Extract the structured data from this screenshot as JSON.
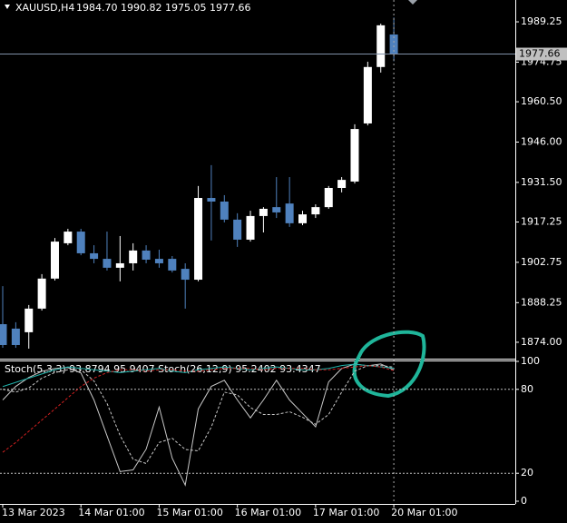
{
  "chart_data": [
    {
      "type": "candlestick",
      "symbol": "XAUUSD,H4",
      "ohlc_text": "1984.70 1990.82 1975.05 1977.66",
      "categories": [
        "13 Mar 2023",
        null,
        null,
        null,
        null,
        null,
        "14 Mar 01:00",
        null,
        null,
        null,
        null,
        null,
        "15 Mar 01:00",
        null,
        null,
        null,
        null,
        null,
        "16 Mar 01:00",
        null,
        null,
        null,
        null,
        null,
        "17 Mar 01:00",
        null,
        null,
        null,
        null,
        null,
        "20 Mar 01:00"
      ],
      "open": [
        1880.5,
        1878.9,
        1877.6,
        1886.1,
        1896.9,
        1909.6,
        1913.8,
        1906.0,
        1904.0,
        1900.8,
        1902.4,
        1907.0,
        1904.0,
        1904.0,
        1900.4,
        1896.5,
        1925.9,
        1924.6,
        1918.1,
        1910.9,
        1919.4,
        1922.6,
        1923.9,
        1916.8,
        1920.0,
        1922.6,
        1929.5,
        1931.8,
        1952.7,
        1973.0,
        1984.7
      ],
      "high": [
        1894.2,
        1881.2,
        1887.4,
        1898.5,
        1911.5,
        1914.8,
        1914.8,
        1908.9,
        1913.8,
        1912.2,
        1909.6,
        1908.9,
        1907.3,
        1905.0,
        1902.4,
        1930.2,
        1937.7,
        1926.9,
        1920.4,
        1921.3,
        1922.6,
        1933.4,
        1933.4,
        1921.3,
        1923.6,
        1930.2,
        1933.4,
        1952.4,
        1974.9,
        1988.6,
        1990.82
      ],
      "low": [
        1872.0,
        1872.0,
        1871.7,
        1885.4,
        1896.2,
        1908.9,
        1905.3,
        1902.4,
        1899.8,
        1895.9,
        1899.8,
        1902.4,
        1900.8,
        1899.1,
        1886.1,
        1895.9,
        1910.6,
        1917.1,
        1908.3,
        1910.2,
        1913.5,
        1918.7,
        1915.5,
        1916.1,
        1918.7,
        1922.0,
        1927.9,
        1931.1,
        1952.0,
        1971.0,
        1975.05
      ],
      "close": [
        1873.0,
        1873.0,
        1886.1,
        1896.9,
        1910.2,
        1913.8,
        1906.0,
        1904.0,
        1900.8,
        1902.4,
        1907.0,
        1903.7,
        1902.4,
        1899.8,
        1896.5,
        1925.9,
        1924.6,
        1918.1,
        1910.9,
        1919.4,
        1922.0,
        1920.7,
        1916.8,
        1920.0,
        1922.6,
        1929.5,
        1932.4,
        1950.7,
        1973.0,
        1988.0,
        1977.66
      ],
      "up_color": "#ffffff",
      "down_color": "#4f81bd",
      "last_price": 1977.66,
      "ylim": [
        1868.1,
        1997.1
      ],
      "yticks": [
        {
          "value": 1874,
          "label": "1874.00"
        },
        {
          "value": 1888.25,
          "label": "1888.25"
        },
        {
          "value": 1902.75,
          "label": "1902.75"
        },
        {
          "value": 1917.25,
          "label": "1917.25"
        },
        {
          "value": 1931.5,
          "label": "1931.50"
        },
        {
          "value": 1946,
          "label": "1946.00"
        },
        {
          "value": 1960.5,
          "label": "1960.50"
        },
        {
          "value": 1974.75,
          "label": "1974.75"
        },
        {
          "value": 1989.25,
          "label": "1989.25"
        }
      ]
    },
    {
      "type": "line",
      "title": "Stoch(5,3,3) 93.8794 95.9407  Stoch(26,12,9) 95.2402 93.4347",
      "series": [
        {
          "color": "#c8c8c8",
          "dashed": false,
          "values": [
            72.4,
            82.1,
            88.5,
            92.9,
            94.9,
            95.5,
            91.7,
            72.4,
            46.8,
            21.2,
            22.4,
            37.2,
            67.3,
            30.8,
            11.5,
            66.0,
            82.1,
            86.5,
            72.4,
            59.6,
            72.4,
            86.5,
            72.4,
            62.8,
            53.2,
            85.3,
            94.9,
            98.1,
            96.8,
            98.1,
            93.9
          ]
        },
        {
          "color": "#c8c8c8",
          "dashed": true,
          "values": [
            80,
            78,
            81,
            88,
            92,
            94,
            94,
            86,
            70,
            47,
            30,
            27,
            42,
            45,
            37,
            36,
            53,
            78,
            76,
            67,
            62,
            62,
            64,
            60,
            55,
            62,
            78,
            93,
            97,
            97,
            95.9
          ]
        },
        {
          "color": "#20b2aa",
          "dashed": false,
          "values": [
            82,
            85,
            88,
            91,
            94,
            96,
            95,
            94,
            93,
            92,
            93,
            94,
            95,
            93,
            92,
            94,
            95,
            96,
            95,
            94,
            95,
            96,
            95,
            94,
            94,
            95,
            97,
            98,
            97,
            96,
            95.2
          ]
        },
        {
          "color": "#d02020",
          "dashed": true,
          "values": [
            35,
            42,
            50,
            58,
            66,
            74,
            82,
            88,
            92,
            94,
            94,
            93,
            94,
            94,
            93,
            93,
            94,
            95,
            95,
            95,
            94,
            95,
            95,
            95,
            94,
            94,
            95,
            96,
            97,
            96,
            93.4
          ]
        }
      ],
      "ylim": [
        0,
        100
      ],
      "yticks": [
        0,
        20,
        80,
        100
      ],
      "levels": [
        20,
        80
      ]
    }
  ]
}
